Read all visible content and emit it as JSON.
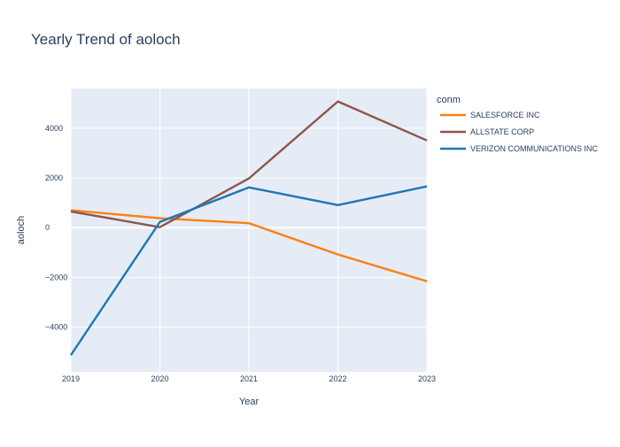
{
  "chart_data": {
    "type": "line",
    "title": "Yearly Trend of aoloch",
    "xlabel": "Year",
    "ylabel": "aoloch",
    "x": [
      "2019",
      "2020",
      "2021",
      "2022",
      "2023"
    ],
    "xlim": [
      2019,
      2023
    ],
    "ylim": [
      -5800,
      5600
    ],
    "yticks": [
      -4000,
      -2000,
      0,
      2000,
      4000
    ],
    "ytick_labels": [
      "−4000",
      "−2000",
      "0",
      "2000",
      "4000"
    ],
    "grid": true,
    "legend_title": "conm",
    "legend_position": "right",
    "series": [
      {
        "name": "SALESFORCE INC",
        "color": "#ff7f0e",
        "values": [
          700,
          380,
          180,
          -1080,
          -2160
        ]
      },
      {
        "name": "ALLSTATE CORP",
        "color": "#8c564b",
        "values": [
          650,
          20,
          1980,
          5080,
          3510
        ]
      },
      {
        "name": "VERIZON COMMUNICATIONS INC",
        "color": "#1f77b4",
        "values": [
          -5130,
          230,
          1620,
          910,
          1660
        ]
      }
    ],
    "colors": {
      "plot_bg": "#e5ecf6",
      "grid": "#ffffff",
      "text": "#2a3f5f"
    }
  }
}
